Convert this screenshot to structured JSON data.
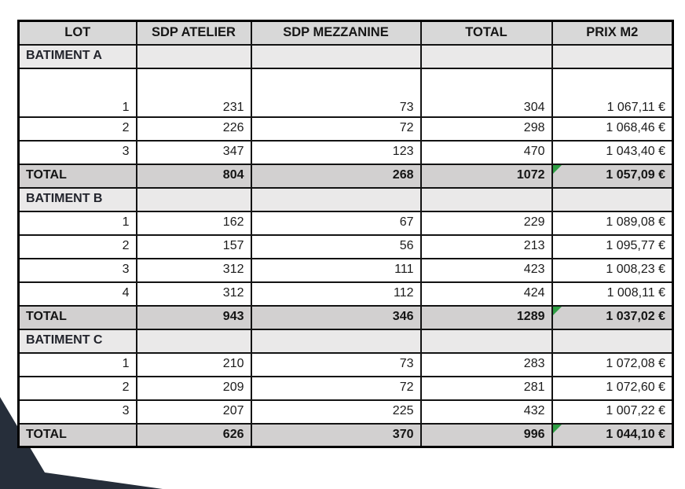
{
  "page": {
    "background_color": "#ffffff",
    "corner_accent_color": "#262e3a",
    "flag_color": "#2f9e44",
    "header_bg": "#d8d8d8",
    "section_bg": "#eae9e9",
    "total_bg": "#d2d0d0"
  },
  "table": {
    "headers": [
      "LOT",
      "SDP ATELIER",
      "SDP MEZZANINE",
      "TOTAL",
      "PRIX M2"
    ],
    "sections": [
      {
        "name": "BATIMENT A",
        "rows": [
          {
            "lot": "1",
            "sdp_atelier": "231",
            "sdp_mezzanine": "73",
            "total": "304",
            "prix_m2": "1 067,11 €"
          },
          {
            "lot": "2",
            "sdp_atelier": "226",
            "sdp_mezzanine": "72",
            "total": "298",
            "prix_m2": "1 068,46 €"
          },
          {
            "lot": "3",
            "sdp_atelier": "347",
            "sdp_mezzanine": "123",
            "total": "470",
            "prix_m2": "1 043,40 €"
          }
        ],
        "total": {
          "label": "TOTAL",
          "sdp_atelier": "804",
          "sdp_mezzanine": "268",
          "total": "1072",
          "prix_m2": "1 057,09 €"
        }
      },
      {
        "name": "BATIMENT B",
        "rows": [
          {
            "lot": "1",
            "sdp_atelier": "162",
            "sdp_mezzanine": "67",
            "total": "229",
            "prix_m2": "1 089,08 €"
          },
          {
            "lot": "2",
            "sdp_atelier": "157",
            "sdp_mezzanine": "56",
            "total": "213",
            "prix_m2": "1 095,77 €"
          },
          {
            "lot": "3",
            "sdp_atelier": "312",
            "sdp_mezzanine": "111",
            "total": "423",
            "prix_m2": "1 008,23 €"
          },
          {
            "lot": "4",
            "sdp_atelier": "312",
            "sdp_mezzanine": "112",
            "total": "424",
            "prix_m2": "1 008,11 €"
          }
        ],
        "total": {
          "label": "TOTAL",
          "sdp_atelier": "943",
          "sdp_mezzanine": "346",
          "total": "1289",
          "prix_m2": "1 037,02 €"
        }
      },
      {
        "name": "BATIMENT C",
        "rows": [
          {
            "lot": "1",
            "sdp_atelier": "210",
            "sdp_mezzanine": "73",
            "total": "283",
            "prix_m2": "1 072,08 €"
          },
          {
            "lot": "2",
            "sdp_atelier": "209",
            "sdp_mezzanine": "72",
            "total": "281",
            "prix_m2": "1 072,60 €"
          },
          {
            "lot": "3",
            "sdp_atelier": "207",
            "sdp_mezzanine": "225",
            "total": "432",
            "prix_m2": "1 007,22 €"
          }
        ],
        "total": {
          "label": "TOTAL",
          "sdp_atelier": "626",
          "sdp_mezzanine": "370",
          "total": "996",
          "prix_m2": "1 044,10 €"
        }
      }
    ]
  },
  "icons": {
    "error_flag": "excel-green-corner-triangle"
  }
}
